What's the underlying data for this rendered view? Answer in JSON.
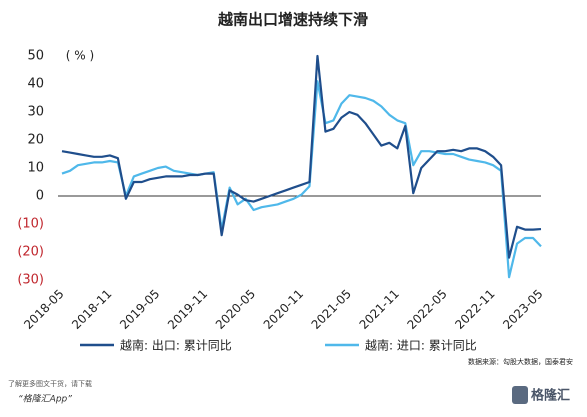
{
  "chart_data": {
    "type": "line",
    "title": "越南出口增速持续下滑",
    "y_unit": "( % )",
    "categories": [
      "2018-05",
      null,
      null,
      null,
      null,
      null,
      "2018-11",
      null,
      null,
      null,
      null,
      null,
      "2019-05",
      null,
      null,
      null,
      null,
      null,
      "2019-11",
      null,
      null,
      null,
      null,
      null,
      "2020-05",
      null,
      null,
      null,
      null,
      null,
      "2020-11",
      null,
      null,
      null,
      null,
      null,
      "2021-05",
      null,
      null,
      null,
      null,
      null,
      "2021-11",
      null,
      null,
      null,
      null,
      null,
      "2022-05",
      null,
      null,
      null,
      null,
      null,
      "2022-11",
      null,
      null,
      null,
      null,
      null,
      "2023-05"
    ],
    "series": [
      {
        "name": "越南: 出口: 累计同比",
        "color": "#1f4e8c",
        "values": [
          16,
          15.5,
          15,
          14.5,
          14,
          14,
          14.5,
          13.5,
          -1,
          5,
          5,
          6,
          6.5,
          7,
          7,
          7,
          7.5,
          7.5,
          8,
          8,
          -14,
          2,
          0.5,
          -1.5,
          -2,
          -1,
          0,
          1,
          2,
          3,
          4,
          5,
          50,
          23,
          24,
          28,
          30,
          29,
          26,
          22,
          18,
          19,
          17,
          25,
          1,
          10,
          13,
          16,
          16,
          16.5,
          16,
          17,
          17,
          16,
          14,
          11,
          -22,
          -11,
          -12,
          -12,
          -11.8
        ]
      },
      {
        "name": "越南: 进口: 累计同比",
        "color": "#4fb8ea",
        "values": [
          8,
          9,
          11,
          11.5,
          12,
          12,
          12.5,
          12,
          0,
          7,
          8,
          9,
          10,
          10.5,
          9,
          8.5,
          8,
          7.5,
          8,
          8.5,
          -12,
          3,
          -3,
          -1,
          -5,
          -4,
          -3.5,
          -3,
          -2,
          -1,
          0.5,
          3.5,
          41,
          26,
          27,
          33,
          36,
          35.5,
          35,
          34,
          32,
          29,
          27,
          26,
          11,
          16,
          16,
          15.5,
          15,
          15,
          14,
          13,
          12.5,
          12,
          11,
          9,
          -29,
          -17,
          -15,
          -15,
          -18
        ]
      }
    ],
    "ylim": [
      -30,
      50
    ],
    "yticks": [
      {
        "value": -30,
        "label": "(30)"
      },
      {
        "value": -20,
        "label": "(20)"
      },
      {
        "value": -10,
        "label": "(10)"
      },
      0,
      10,
      20,
      30,
      40,
      50
    ],
    "negative_tick_color": "#c0262d",
    "source": "数据来源：勾股大数据，国泰君安"
  },
  "footer": {
    "line1": "了解更多图文干货，请下载",
    "line2": "“格隆汇App”",
    "logo": "格隆汇"
  }
}
